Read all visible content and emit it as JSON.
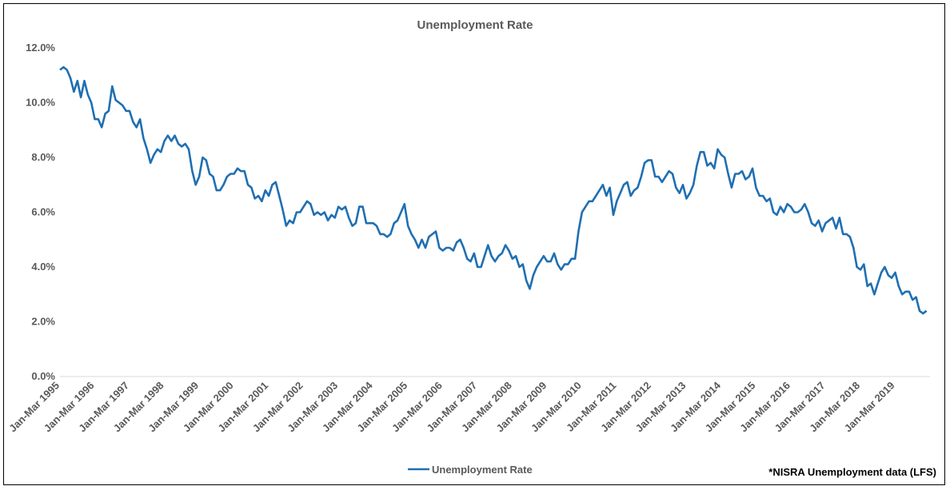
{
  "chart_data": {
    "type": "line",
    "title": "Unemployment Rate",
    "xlabel": "",
    "ylabel": "",
    "ylim": [
      0,
      12
    ],
    "yticks": [
      "0.0%",
      "2.0%",
      "4.0%",
      "6.0%",
      "8.0%",
      "10.0%",
      "12.0%"
    ],
    "grid": false,
    "legend_position": "bottom",
    "source_note": "*NISRA Unemployment data (LFS)",
    "x_tick_labels": [
      "Jan-Mar 1995",
      "Jan-Mar 1996",
      "Jan-Mar 1997",
      "Jan-Mar 1998",
      "Jan-Mar 1999",
      "Jan-Mar 2000",
      "Jan-Mar 2001",
      "Jan-Mar 2002",
      "Jan-Mar 2003",
      "Jan-Mar 2004",
      "Jan-Mar 2005",
      "Jan-Mar 2006",
      "Jan-Mar 2007",
      "Jan-Mar 2008",
      "Jan-Mar 2009",
      "Jan-Mar 2010",
      "Jan-Mar 2011",
      "Jan-Mar 2012",
      "Jan-Mar 2013",
      "Jan-Mar 2014",
      "Jan-Mar 2015",
      "Jan-Mar 2016",
      "Jan-Mar 2017",
      "Jan-Mar 2018",
      "Jan-Mar 2019"
    ],
    "series_color": "#1F6FB2",
    "series": [
      {
        "name": "Unemployment Rate",
        "points": [
          [
            1995.0,
            11.2
          ],
          [
            1995.1,
            11.3
          ],
          [
            1995.2,
            11.2
          ],
          [
            1995.3,
            10.9
          ],
          [
            1995.4,
            10.4
          ],
          [
            1995.5,
            10.8
          ],
          [
            1995.6,
            10.2
          ],
          [
            1995.7,
            10.8
          ],
          [
            1995.8,
            10.3
          ],
          [
            1995.9,
            10.0
          ],
          [
            1996.0,
            9.4
          ],
          [
            1996.1,
            9.4
          ],
          [
            1996.2,
            9.1
          ],
          [
            1996.3,
            9.6
          ],
          [
            1996.4,
            9.7
          ],
          [
            1996.5,
            10.6
          ],
          [
            1996.6,
            10.1
          ],
          [
            1996.7,
            10.0
          ],
          [
            1996.8,
            9.9
          ],
          [
            1996.9,
            9.7
          ],
          [
            1997.0,
            9.7
          ],
          [
            1997.1,
            9.3
          ],
          [
            1997.2,
            9.1
          ],
          [
            1997.3,
            9.4
          ],
          [
            1997.4,
            8.7
          ],
          [
            1997.5,
            8.3
          ],
          [
            1997.6,
            7.8
          ],
          [
            1997.7,
            8.1
          ],
          [
            1997.8,
            8.3
          ],
          [
            1997.9,
            8.2
          ],
          [
            1998.0,
            8.6
          ],
          [
            1998.1,
            8.8
          ],
          [
            1998.2,
            8.6
          ],
          [
            1998.3,
            8.8
          ],
          [
            1998.4,
            8.5
          ],
          [
            1998.5,
            8.4
          ],
          [
            1998.6,
            8.5
          ],
          [
            1998.7,
            8.3
          ],
          [
            1998.8,
            7.5
          ],
          [
            1998.9,
            7.0
          ],
          [
            1999.0,
            7.3
          ],
          [
            1999.1,
            8.0
          ],
          [
            1999.2,
            7.9
          ],
          [
            1999.3,
            7.4
          ],
          [
            1999.4,
            7.3
          ],
          [
            1999.5,
            6.8
          ],
          [
            1999.6,
            6.8
          ],
          [
            1999.7,
            7.0
          ],
          [
            1999.8,
            7.3
          ],
          [
            1999.9,
            7.4
          ],
          [
            2000.0,
            7.4
          ],
          [
            2000.1,
            7.6
          ],
          [
            2000.2,
            7.5
          ],
          [
            2000.3,
            7.5
          ],
          [
            2000.4,
            7.0
          ],
          [
            2000.5,
            6.9
          ],
          [
            2000.6,
            6.5
          ],
          [
            2000.7,
            6.6
          ],
          [
            2000.8,
            6.4
          ],
          [
            2000.9,
            6.8
          ],
          [
            2001.0,
            6.6
          ],
          [
            2001.1,
            7.0
          ],
          [
            2001.2,
            7.1
          ],
          [
            2001.3,
            6.6
          ],
          [
            2001.4,
            6.1
          ],
          [
            2001.5,
            5.5
          ],
          [
            2001.6,
            5.7
          ],
          [
            2001.7,
            5.6
          ],
          [
            2001.8,
            6.0
          ],
          [
            2001.9,
            6.0
          ],
          [
            2002.0,
            6.2
          ],
          [
            2002.1,
            6.4
          ],
          [
            2002.2,
            6.3
          ],
          [
            2002.3,
            5.9
          ],
          [
            2002.4,
            6.0
          ],
          [
            2002.5,
            5.9
          ],
          [
            2002.6,
            6.0
          ],
          [
            2002.7,
            5.7
          ],
          [
            2002.8,
            5.9
          ],
          [
            2002.9,
            5.8
          ],
          [
            2003.0,
            6.2
          ],
          [
            2003.1,
            6.1
          ],
          [
            2003.2,
            6.2
          ],
          [
            2003.3,
            5.8
          ],
          [
            2003.4,
            5.5
          ],
          [
            2003.5,
            5.6
          ],
          [
            2003.6,
            6.2
          ],
          [
            2003.7,
            6.2
          ],
          [
            2003.8,
            5.6
          ],
          [
            2003.9,
            5.6
          ],
          [
            2004.0,
            5.6
          ],
          [
            2004.1,
            5.5
          ],
          [
            2004.2,
            5.2
          ],
          [
            2004.3,
            5.2
          ],
          [
            2004.4,
            5.1
          ],
          [
            2004.5,
            5.2
          ],
          [
            2004.6,
            5.6
          ],
          [
            2004.7,
            5.7
          ],
          [
            2004.8,
            6.0
          ],
          [
            2004.9,
            6.3
          ],
          [
            2005.0,
            5.5
          ],
          [
            2005.1,
            5.2
          ],
          [
            2005.2,
            5.0
          ],
          [
            2005.3,
            4.7
          ],
          [
            2005.4,
            5.0
          ],
          [
            2005.5,
            4.7
          ],
          [
            2005.6,
            5.1
          ],
          [
            2005.7,
            5.2
          ],
          [
            2005.8,
            5.3
          ],
          [
            2005.9,
            4.7
          ],
          [
            2006.0,
            4.6
          ],
          [
            2006.1,
            4.7
          ],
          [
            2006.2,
            4.7
          ],
          [
            2006.3,
            4.6
          ],
          [
            2006.4,
            4.9
          ],
          [
            2006.5,
            5.0
          ],
          [
            2006.6,
            4.7
          ],
          [
            2006.7,
            4.3
          ],
          [
            2006.8,
            4.2
          ],
          [
            2006.9,
            4.5
          ],
          [
            2007.0,
            4.0
          ],
          [
            2007.1,
            4.0
          ],
          [
            2007.2,
            4.4
          ],
          [
            2007.3,
            4.8
          ],
          [
            2007.4,
            4.4
          ],
          [
            2007.5,
            4.2
          ],
          [
            2007.6,
            4.4
          ],
          [
            2007.7,
            4.5
          ],
          [
            2007.8,
            4.8
          ],
          [
            2007.9,
            4.6
          ],
          [
            2008.0,
            4.3
          ],
          [
            2008.1,
            4.4
          ],
          [
            2008.2,
            4.0
          ],
          [
            2008.3,
            4.1
          ],
          [
            2008.4,
            3.5
          ],
          [
            2008.5,
            3.2
          ],
          [
            2008.6,
            3.7
          ],
          [
            2008.7,
            4.0
          ],
          [
            2008.8,
            4.2
          ],
          [
            2008.9,
            4.4
          ],
          [
            2009.0,
            4.2
          ],
          [
            2009.1,
            4.2
          ],
          [
            2009.2,
            4.5
          ],
          [
            2009.3,
            4.1
          ],
          [
            2009.4,
            3.9
          ],
          [
            2009.5,
            4.1
          ],
          [
            2009.6,
            4.1
          ],
          [
            2009.7,
            4.3
          ],
          [
            2009.8,
            4.3
          ],
          [
            2009.9,
            5.3
          ],
          [
            2010.0,
            6.0
          ],
          [
            2010.1,
            6.2
          ],
          [
            2010.2,
            6.4
          ],
          [
            2010.3,
            6.4
          ],
          [
            2010.4,
            6.6
          ],
          [
            2010.5,
            6.8
          ],
          [
            2010.6,
            7.0
          ],
          [
            2010.7,
            6.6
          ],
          [
            2010.8,
            6.9
          ],
          [
            2010.9,
            5.9
          ],
          [
            2011.0,
            6.4
          ],
          [
            2011.1,
            6.7
          ],
          [
            2011.2,
            7.0
          ],
          [
            2011.3,
            7.1
          ],
          [
            2011.4,
            6.6
          ],
          [
            2011.5,
            6.8
          ],
          [
            2011.6,
            6.9
          ],
          [
            2011.7,
            7.3
          ],
          [
            2011.8,
            7.8
          ],
          [
            2011.9,
            7.9
          ],
          [
            2012.0,
            7.9
          ],
          [
            2012.1,
            7.3
          ],
          [
            2012.2,
            7.3
          ],
          [
            2012.3,
            7.1
          ],
          [
            2012.4,
            7.3
          ],
          [
            2012.5,
            7.5
          ],
          [
            2012.6,
            7.4
          ],
          [
            2012.7,
            6.9
          ],
          [
            2012.8,
            6.7
          ],
          [
            2012.9,
            7.0
          ],
          [
            2013.0,
            6.5
          ],
          [
            2013.1,
            6.7
          ],
          [
            2013.2,
            7.0
          ],
          [
            2013.3,
            7.7
          ],
          [
            2013.4,
            8.2
          ],
          [
            2013.5,
            8.2
          ],
          [
            2013.6,
            7.7
          ],
          [
            2013.7,
            7.8
          ],
          [
            2013.8,
            7.6
          ],
          [
            2013.9,
            8.3
          ],
          [
            2014.0,
            8.1
          ],
          [
            2014.1,
            8.0
          ],
          [
            2014.2,
            7.4
          ],
          [
            2014.3,
            6.9
          ],
          [
            2014.4,
            7.4
          ],
          [
            2014.5,
            7.4
          ],
          [
            2014.6,
            7.5
          ],
          [
            2014.7,
            7.2
          ],
          [
            2014.8,
            7.3
          ],
          [
            2014.9,
            7.6
          ],
          [
            2015.0,
            6.9
          ],
          [
            2015.1,
            6.6
          ],
          [
            2015.2,
            6.6
          ],
          [
            2015.3,
            6.4
          ],
          [
            2015.4,
            6.5
          ],
          [
            2015.5,
            6.0
          ],
          [
            2015.6,
            5.9
          ],
          [
            2015.7,
            6.2
          ],
          [
            2015.8,
            6.0
          ],
          [
            2015.9,
            6.3
          ],
          [
            2016.0,
            6.2
          ],
          [
            2016.1,
            6.0
          ],
          [
            2016.2,
            6.0
          ],
          [
            2016.3,
            6.1
          ],
          [
            2016.4,
            6.3
          ],
          [
            2016.5,
            6.0
          ],
          [
            2016.6,
            5.6
          ],
          [
            2016.7,
            5.5
          ],
          [
            2016.8,
            5.7
          ],
          [
            2016.9,
            5.3
          ],
          [
            2017.0,
            5.6
          ],
          [
            2017.1,
            5.7
          ],
          [
            2017.2,
            5.8
          ],
          [
            2017.3,
            5.4
          ],
          [
            2017.4,
            5.8
          ],
          [
            2017.5,
            5.2
          ],
          [
            2017.6,
            5.2
          ],
          [
            2017.7,
            5.1
          ],
          [
            2017.8,
            4.7
          ],
          [
            2017.9,
            4.0
          ],
          [
            2018.0,
            3.9
          ],
          [
            2018.1,
            4.1
          ],
          [
            2018.2,
            3.3
          ],
          [
            2018.3,
            3.4
          ],
          [
            2018.4,
            3.0
          ],
          [
            2018.5,
            3.4
          ],
          [
            2018.6,
            3.8
          ],
          [
            2018.7,
            4.0
          ],
          [
            2018.8,
            3.7
          ],
          [
            2018.9,
            3.6
          ],
          [
            2019.0,
            3.8
          ],
          [
            2019.1,
            3.3
          ],
          [
            2019.2,
            3.0
          ],
          [
            2019.3,
            3.1
          ],
          [
            2019.4,
            3.1
          ],
          [
            2019.5,
            2.8
          ],
          [
            2019.6,
            2.9
          ],
          [
            2019.7,
            2.4
          ],
          [
            2019.8,
            2.3
          ],
          [
            2019.9,
            2.4
          ]
        ]
      }
    ]
  }
}
